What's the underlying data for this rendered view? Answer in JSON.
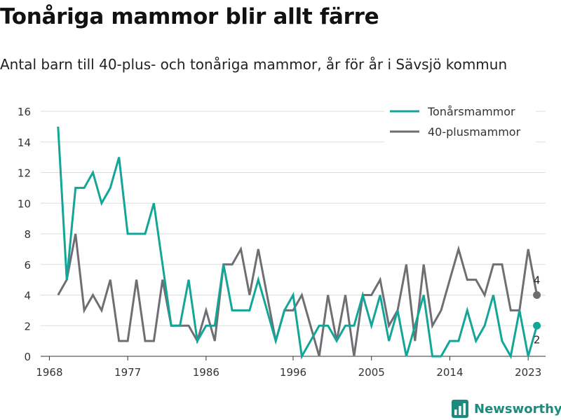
{
  "title": "Tonåriga mammor blir allt färre",
  "subtitle": "Antal barn till 40-plus- och tonåriga mammor, år för år i Sävsjö kommun",
  "brand": "Newsworthy",
  "colors": {
    "teen": "#13a597",
    "forty": "#6e6e73"
  },
  "chart_data": {
    "type": "line",
    "title": "",
    "xlabel": "",
    "ylabel": "",
    "xlim": [
      1967,
      2025
    ],
    "ylim": [
      0,
      16
    ],
    "x_ticks": [
      1968,
      1977,
      1986,
      1996,
      2005,
      2014,
      2023
    ],
    "y_ticks": [
      0,
      2,
      4,
      6,
      8,
      10,
      12,
      14,
      16
    ],
    "grid": true,
    "legend_position": "top-right",
    "x": [
      1969,
      1970,
      1971,
      1972,
      1973,
      1974,
      1975,
      1976,
      1977,
      1978,
      1979,
      1980,
      1981,
      1982,
      1983,
      1984,
      1985,
      1986,
      1987,
      1988,
      1989,
      1990,
      1991,
      1992,
      1993,
      1994,
      1995,
      1996,
      1997,
      1998,
      1999,
      2000,
      2001,
      2002,
      2003,
      2004,
      2005,
      2006,
      2007,
      2008,
      2009,
      2010,
      2011,
      2012,
      2013,
      2014,
      2015,
      2016,
      2017,
      2018,
      2019,
      2020,
      2021,
      2022,
      2023,
      2024
    ],
    "series": [
      {
        "name": "Tonårsmammor",
        "values": [
          15,
          5,
          11,
          11,
          12,
          10,
          11,
          13,
          8,
          8,
          8,
          10,
          6,
          2,
          2,
          5,
          1,
          2,
          2,
          6,
          3,
          3,
          3,
          5,
          3,
          1,
          3,
          4,
          0,
          1,
          2,
          2,
          1,
          2,
          2,
          4,
          2,
          4,
          1,
          3,
          0,
          2,
          4,
          0,
          0,
          1,
          1,
          3,
          1,
          2,
          4,
          1,
          0,
          3,
          0,
          2
        ],
        "end_label": "2"
      },
      {
        "name": "40-plusmammor",
        "values": [
          4,
          5,
          8,
          3,
          4,
          3,
          5,
          1,
          1,
          5,
          1,
          1,
          5,
          2,
          2,
          2,
          1,
          3,
          1,
          6,
          6,
          7,
          4,
          7,
          4,
          1,
          3,
          3,
          4,
          2,
          0,
          4,
          1,
          4,
          0,
          4,
          4,
          5,
          2,
          3,
          6,
          1,
          6,
          2,
          3,
          5,
          7,
          5,
          5,
          4,
          6,
          6,
          3,
          3,
          7,
          4
        ],
        "end_label": "4"
      }
    ]
  }
}
